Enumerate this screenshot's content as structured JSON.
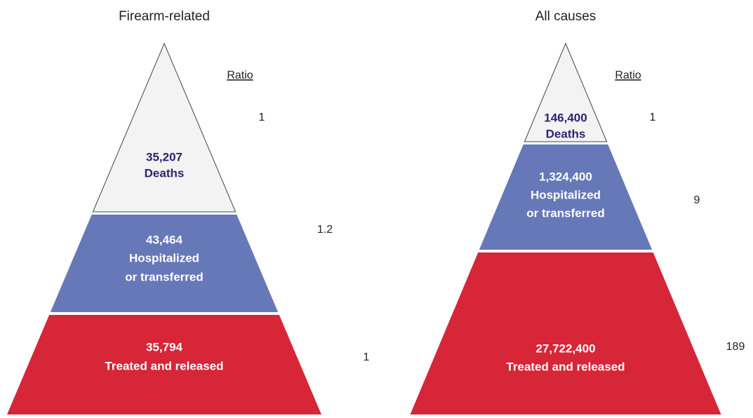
{
  "pyramids": [
    {
      "title": "Firearm-related",
      "ratio_heading": "Ratio",
      "levels": [
        {
          "number": "35,207",
          "label_lines": [
            "Deaths"
          ],
          "ratio": "1"
        },
        {
          "number": "43,464",
          "label_lines": [
            "Hospitalized",
            "or transferred"
          ],
          "ratio": "1.2"
        },
        {
          "number": "35,794",
          "label_lines": [
            "Treated and released"
          ],
          "ratio": "1"
        }
      ]
    },
    {
      "title": "All causes",
      "ratio_heading": "Ratio",
      "levels": [
        {
          "number": "146,400",
          "label_lines": [
            "Deaths"
          ],
          "ratio": "1"
        },
        {
          "number": "1,324,400",
          "label_lines": [
            "Hospitalized",
            "or transferred"
          ],
          "ratio": "9"
        },
        {
          "number": "27,722,400",
          "label_lines": [
            "Treated and released"
          ],
          "ratio": "189"
        }
      ]
    }
  ]
}
